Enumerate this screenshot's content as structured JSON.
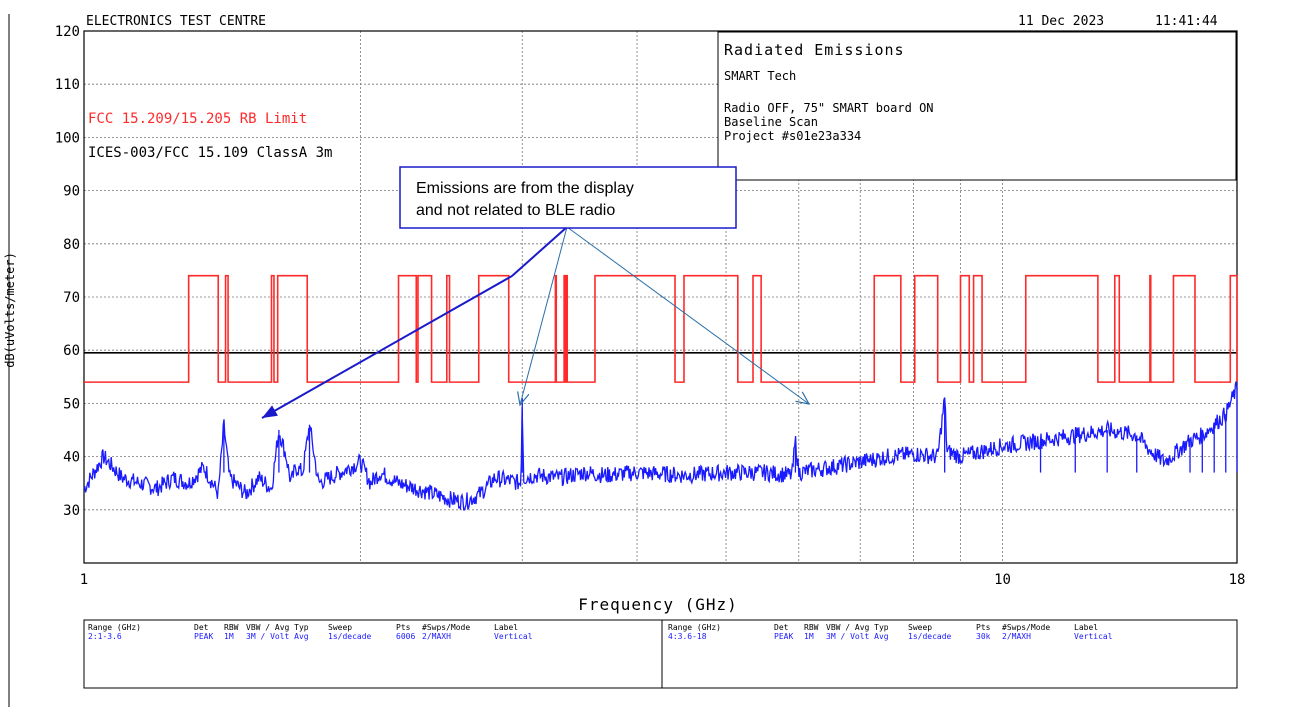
{
  "header": {
    "lab": "ELECTRONICS TEST CENTRE",
    "date": "11 Dec 2023",
    "time": "11:41:44"
  },
  "info_box": {
    "title": "Radiated Emissions",
    "company": "SMART Tech",
    "lines": [
      "Radio OFF, 75\" SMART board ON",
      "Baseline Scan",
      "Project #s01e23a334"
    ]
  },
  "limit_labels": {
    "rb_limit": "FCC 15.209/15.205 RB Limit",
    "class_a": "ICES-003/FCC 15.109 ClassA 3m"
  },
  "callout": {
    "lines": [
      "Emissions are from the display",
      "and not related to BLE radio"
    ]
  },
  "colors": {
    "limit": "#ff2a2a",
    "trace": "#1a1aff",
    "reference": "#000000",
    "annotation_text": "#000000"
  },
  "chart_data": {
    "type": "line",
    "x_scale": "log",
    "xlabel": "Frequency (GHz)",
    "ylabel": "dB(uVolts/meter)",
    "xlim": [
      1,
      18
    ],
    "ylim": [
      20,
      120
    ],
    "x_tick_labels": [
      {
        "value": 1,
        "label": "1"
      },
      {
        "value": 10,
        "label": "10"
      },
      {
        "value": 18,
        "label": "18"
      }
    ],
    "y_ticks": [
      120,
      110,
      100,
      90,
      80,
      70,
      60,
      50,
      40,
      30
    ],
    "grid": true,
    "reference_line": 59.5,
    "series": [
      {
        "name": "FCC 15.209/15.205 RB Limit",
        "kind": "step",
        "low": 54,
        "high": 74,
        "high_bands_ghz": [
          [
            1.3,
            1.4
          ],
          [
            1.426,
            1.435
          ],
          [
            1.6,
            1.61
          ],
          [
            1.625,
            1.75
          ],
          [
            2.2,
            2.3
          ],
          [
            2.31,
            2.39
          ],
          [
            2.483,
            2.5
          ],
          [
            2.69,
            2.9
          ],
          [
            3.26,
            3.267
          ],
          [
            3.332,
            3.339
          ],
          [
            3.345,
            3.358
          ],
          [
            3.6,
            4.4
          ],
          [
            4.5,
            5.15
          ],
          [
            5.35,
            5.46
          ],
          [
            7.25,
            7.75
          ],
          [
            8.025,
            8.5
          ],
          [
            9.0,
            9.2
          ],
          [
            9.3,
            9.5
          ],
          [
            10.6,
            12.7
          ],
          [
            13.25,
            13.4
          ],
          [
            14.47,
            14.5
          ],
          [
            15.35,
            16.2
          ],
          [
            17.7,
            18.0
          ]
        ]
      },
      {
        "name": "ICES-003/FCC 15.109 ClassA 3m",
        "kind": "constant",
        "y": 59.5
      },
      {
        "name": "Vertical",
        "kind": "trace",
        "points": [
          [
            1.0,
            34
          ],
          [
            1.05,
            40
          ],
          [
            1.1,
            36
          ],
          [
            1.15,
            35
          ],
          [
            1.2,
            34
          ],
          [
            1.25,
            36
          ],
          [
            1.3,
            35
          ],
          [
            1.35,
            38
          ],
          [
            1.4,
            33
          ],
          [
            1.42,
            46
          ],
          [
            1.44,
            36
          ],
          [
            1.5,
            33
          ],
          [
            1.55,
            36
          ],
          [
            1.6,
            34
          ],
          [
            1.63,
            45
          ],
          [
            1.66,
            40
          ],
          [
            1.68,
            35
          ],
          [
            1.7,
            38
          ],
          [
            1.73,
            37
          ],
          [
            1.76,
            46
          ],
          [
            1.8,
            35
          ],
          [
            1.9,
            37
          ],
          [
            2.0,
            39
          ],
          [
            2.05,
            35
          ],
          [
            2.1,
            37
          ],
          [
            2.2,
            35
          ],
          [
            2.3,
            34
          ],
          [
            2.4,
            33
          ],
          [
            2.5,
            32
          ],
          [
            2.6,
            31.5
          ],
          [
            2.7,
            33
          ],
          [
            2.8,
            36
          ],
          [
            2.9,
            35.5
          ],
          [
            2.99,
            35
          ],
          [
            3.0,
            51
          ],
          [
            3.01,
            36
          ],
          [
            3.1,
            36.5
          ],
          [
            3.3,
            36
          ],
          [
            3.5,
            37
          ],
          [
            3.7,
            36.5
          ],
          [
            4.0,
            37
          ],
          [
            4.5,
            36.5
          ],
          [
            5.0,
            37
          ],
          [
            5.5,
            37
          ],
          [
            5.9,
            36.5
          ],
          [
            5.95,
            43
          ],
          [
            6.0,
            37
          ],
          [
            6.5,
            38
          ],
          [
            7.0,
            39
          ],
          [
            7.5,
            40
          ],
          [
            8.0,
            40.5
          ],
          [
            8.5,
            40
          ],
          [
            8.65,
            51
          ],
          [
            8.7,
            41
          ],
          [
            9.0,
            40
          ],
          [
            10.0,
            42
          ],
          [
            11.0,
            43
          ],
          [
            12.0,
            44
          ],
          [
            13.0,
            45
          ],
          [
            14.0,
            44
          ],
          [
            14.5,
            41
          ],
          [
            15.0,
            39
          ],
          [
            15.5,
            41
          ],
          [
            16.0,
            43
          ],
          [
            16.5,
            44
          ],
          [
            17.0,
            46
          ],
          [
            17.5,
            48
          ],
          [
            18.0,
            53
          ]
        ]
      }
    ],
    "annotation": {
      "text": "Emissions are from the display and not related to BLE radio",
      "arrows_to": [
        [
          1.6,
          51
        ],
        [
          3.0,
          51
        ],
        [
          6.1,
          50.5
        ]
      ]
    }
  },
  "settings_table": {
    "left": {
      "headers": [
        "Range (GHz)",
        "Det",
        "RBW",
        "VBW / Avg Typ",
        "Sweep",
        "Pts",
        "#Swps/Mode",
        "Label"
      ],
      "values": [
        "2:1-3.6",
        "PEAK",
        "1M",
        "3M / Volt Avg",
        "1s/decade",
        "6006",
        "2/MAXH",
        "Vertical"
      ]
    },
    "right": {
      "headers": [
        "Range (GHz)",
        "Det",
        "RBW",
        "VBW / Avg Typ",
        "Sweep",
        "Pts",
        "#Swps/Mode",
        "Label"
      ],
      "values": [
        "4:3.6-18",
        "PEAK",
        "1M",
        "3M / Volt Avg",
        "1s/decade",
        "30k",
        "2/MAXH",
        "Vertical"
      ]
    }
  }
}
